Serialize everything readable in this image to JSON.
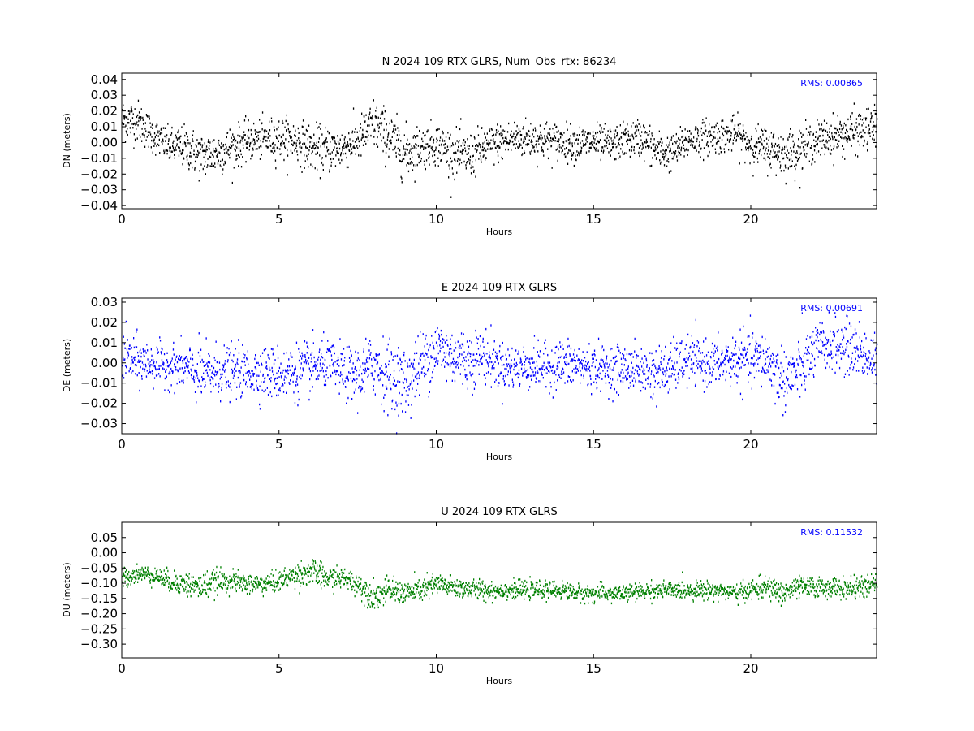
{
  "colors": {
    "N": "#000000",
    "E": "#0000ff",
    "U": "#008000",
    "rms_text": "#0000ff",
    "background": "#ffffff"
  },
  "chart_data": [
    {
      "type": "scatter",
      "title": "N 2024 109 RTX  GLRS, Num_Obs_rtx: 86234",
      "xlabel": "Hours",
      "ylabel": "DN (meters)",
      "xlim": [
        0,
        24
      ],
      "ylim": [
        -0.042,
        0.044
      ],
      "xticks": [
        0,
        5,
        10,
        15,
        20
      ],
      "xtick_labels": [
        "0",
        "5",
        "10",
        "15",
        "20"
      ],
      "yticks": [
        0.04,
        0.03,
        0.02,
        0.01,
        0.0,
        -0.01,
        -0.02,
        -0.03,
        -0.04
      ],
      "ytick_labels": [
        "0.04",
        "0.03",
        "0.02",
        "0.01",
        "0.00",
        "−0.01",
        "−0.02",
        "−0.03",
        "−0.04"
      ],
      "rms_label": "RMS:  0.00865",
      "color": "#000000",
      "grid": false,
      "series_profile": {
        "x": [
          0,
          0.5,
          1,
          1.5,
          2,
          2.5,
          3,
          3.5,
          4,
          4.5,
          5,
          5.5,
          6,
          6.5,
          7,
          7.5,
          8,
          8.5,
          9,
          9.5,
          10,
          10.5,
          11,
          11.5,
          12,
          12.5,
          13,
          13.5,
          14,
          14.5,
          15,
          15.5,
          16,
          16.5,
          17,
          17.5,
          18,
          18.5,
          19,
          19.5,
          20,
          20.5,
          21,
          21.5,
          22,
          22.5,
          23,
          23.5,
          24
        ],
        "center": [
          0.015,
          0.014,
          0.005,
          -0.002,
          -0.002,
          -0.008,
          -0.006,
          -0.002,
          0.001,
          0.003,
          0.003,
          0.002,
          -0.003,
          -0.004,
          -0.003,
          0.002,
          0.012,
          0.004,
          -0.006,
          -0.002,
          0.0,
          -0.006,
          -0.008,
          -0.003,
          0.001,
          0.003,
          0.003,
          0.002,
          0.001,
          0.0,
          0.001,
          -0.001,
          0.002,
          0.004,
          -0.005,
          -0.006,
          0.002,
          0.004,
          0.005,
          0.006,
          -0.001,
          -0.003,
          -0.006,
          -0.004,
          0.001,
          0.004,
          0.006,
          0.008,
          0.01
        ],
        "halfwidth": [
          0.012,
          0.012,
          0.01,
          0.01,
          0.012,
          0.013,
          0.013,
          0.012,
          0.011,
          0.011,
          0.012,
          0.012,
          0.013,
          0.013,
          0.012,
          0.012,
          0.015,
          0.014,
          0.015,
          0.012,
          0.012,
          0.013,
          0.013,
          0.012,
          0.011,
          0.011,
          0.011,
          0.011,
          0.01,
          0.01,
          0.01,
          0.01,
          0.01,
          0.011,
          0.011,
          0.01,
          0.01,
          0.01,
          0.01,
          0.01,
          0.011,
          0.012,
          0.013,
          0.012,
          0.011,
          0.011,
          0.012,
          0.012,
          0.012
        ]
      }
    },
    {
      "type": "scatter",
      "title": "E 2024 109 RTX  GLRS",
      "xlabel": "Hours",
      "ylabel": "DE (meters)",
      "xlim": [
        0,
        24
      ],
      "ylim": [
        -0.035,
        0.032
      ],
      "xticks": [
        0,
        5,
        10,
        15,
        20
      ],
      "xtick_labels": [
        "0",
        "5",
        "10",
        "15",
        "20"
      ],
      "yticks": [
        0.03,
        0.02,
        0.01,
        0.0,
        -0.01,
        -0.02,
        -0.03
      ],
      "ytick_labels": [
        "0.03",
        "0.02",
        "0.01",
        "0.00",
        "−0.01",
        "−0.02",
        "−0.03"
      ],
      "rms_label": "RMS:  0.00691",
      "color": "#0000ff",
      "grid": false,
      "series_profile": {
        "x": [
          0,
          0.5,
          1,
          1.5,
          2,
          2.5,
          3,
          3.5,
          4,
          4.5,
          5,
          5.5,
          6,
          6.5,
          7,
          7.5,
          8,
          8.5,
          9,
          9.5,
          10,
          10.5,
          11,
          11.5,
          12,
          12.5,
          13,
          13.5,
          14,
          14.5,
          15,
          15.5,
          16,
          16.5,
          17,
          17.5,
          18,
          18.5,
          19,
          19.5,
          20,
          20.5,
          21,
          21.5,
          22,
          22.5,
          23,
          23.5,
          24
        ],
        "center": [
          0.004,
          0.001,
          0.0,
          -0.001,
          -0.002,
          -0.006,
          -0.004,
          -0.004,
          -0.004,
          -0.004,
          -0.005,
          -0.004,
          -0.002,
          0.0,
          -0.004,
          -0.006,
          0.0,
          -0.006,
          -0.01,
          0.0,
          0.008,
          0.004,
          0.002,
          0.004,
          -0.001,
          -0.002,
          -0.001,
          -0.002,
          0.0,
          -0.001,
          -0.002,
          -0.002,
          -0.002,
          -0.003,
          -0.005,
          -0.002,
          0.002,
          0.0,
          0.0,
          0.002,
          0.002,
          0.002,
          -0.008,
          -0.004,
          0.006,
          0.01,
          0.008,
          0.006,
          0.0
        ],
        "halfwidth": [
          0.012,
          0.011,
          0.009,
          0.009,
          0.01,
          0.013,
          0.012,
          0.011,
          0.011,
          0.011,
          0.012,
          0.012,
          0.012,
          0.01,
          0.011,
          0.013,
          0.014,
          0.015,
          0.016,
          0.014,
          0.014,
          0.013,
          0.013,
          0.012,
          0.01,
          0.01,
          0.01,
          0.01,
          0.011,
          0.01,
          0.01,
          0.01,
          0.01,
          0.01,
          0.012,
          0.011,
          0.011,
          0.01,
          0.01,
          0.012,
          0.012,
          0.012,
          0.014,
          0.014,
          0.012,
          0.012,
          0.012,
          0.012,
          0.012
        ]
      }
    },
    {
      "type": "scatter",
      "title": "U 2024 109 RTX  GLRS",
      "xlabel": "Hours",
      "ylabel": "DU (meters)",
      "xlim": [
        0,
        24
      ],
      "ylim": [
        -0.345,
        0.1
      ],
      "xticks": [
        0,
        5,
        10,
        15,
        20
      ],
      "xtick_labels": [
        "0",
        "5",
        "10",
        "15",
        "20"
      ],
      "yticks": [
        0.05,
        0.0,
        -0.05,
        -0.1,
        -0.15,
        -0.2,
        -0.25,
        -0.3
      ],
      "ytick_labels": [
        "0.05",
        "0.00",
        "−0.05",
        "−0.10",
        "−0.15",
        "−0.20",
        "−0.25",
        "−0.30"
      ],
      "rms_label": "RMS:  0.11532",
      "color": "#008000",
      "grid": false,
      "series_profile": {
        "x": [
          0,
          0.5,
          1,
          1.5,
          2,
          2.5,
          3,
          3.5,
          4,
          4.5,
          5,
          5.5,
          6,
          6.5,
          7,
          7.5,
          8,
          8.5,
          9,
          9.5,
          10,
          10.5,
          11,
          11.5,
          12,
          12.5,
          13,
          13.5,
          14,
          14.5,
          15,
          15.5,
          16,
          16.5,
          17,
          17.5,
          18,
          18.5,
          19,
          19.5,
          20,
          20.5,
          21,
          21.5,
          22,
          22.5,
          23,
          23.5,
          24
        ],
        "center": [
          -0.08,
          -0.065,
          -0.07,
          -0.09,
          -0.1,
          -0.11,
          -0.09,
          -0.09,
          -0.1,
          -0.1,
          -0.09,
          -0.07,
          -0.06,
          -0.08,
          -0.08,
          -0.1,
          -0.14,
          -0.12,
          -0.13,
          -0.12,
          -0.1,
          -0.11,
          -0.115,
          -0.12,
          -0.12,
          -0.12,
          -0.12,
          -0.12,
          -0.12,
          -0.13,
          -0.13,
          -0.13,
          -0.13,
          -0.125,
          -0.12,
          -0.12,
          -0.12,
          -0.12,
          -0.12,
          -0.13,
          -0.12,
          -0.11,
          -0.13,
          -0.11,
          -0.11,
          -0.11,
          -0.115,
          -0.11,
          -0.1
        ],
        "halfwidth": [
          0.03,
          0.025,
          0.025,
          0.03,
          0.035,
          0.04,
          0.035,
          0.03,
          0.03,
          0.03,
          0.03,
          0.035,
          0.04,
          0.035,
          0.03,
          0.035,
          0.04,
          0.035,
          0.035,
          0.035,
          0.035,
          0.03,
          0.03,
          0.03,
          0.025,
          0.025,
          0.025,
          0.025,
          0.025,
          0.025,
          0.025,
          0.025,
          0.025,
          0.025,
          0.025,
          0.025,
          0.025,
          0.025,
          0.025,
          0.025,
          0.03,
          0.03,
          0.035,
          0.03,
          0.03,
          0.03,
          0.03,
          0.03,
          0.03
        ]
      }
    }
  ]
}
